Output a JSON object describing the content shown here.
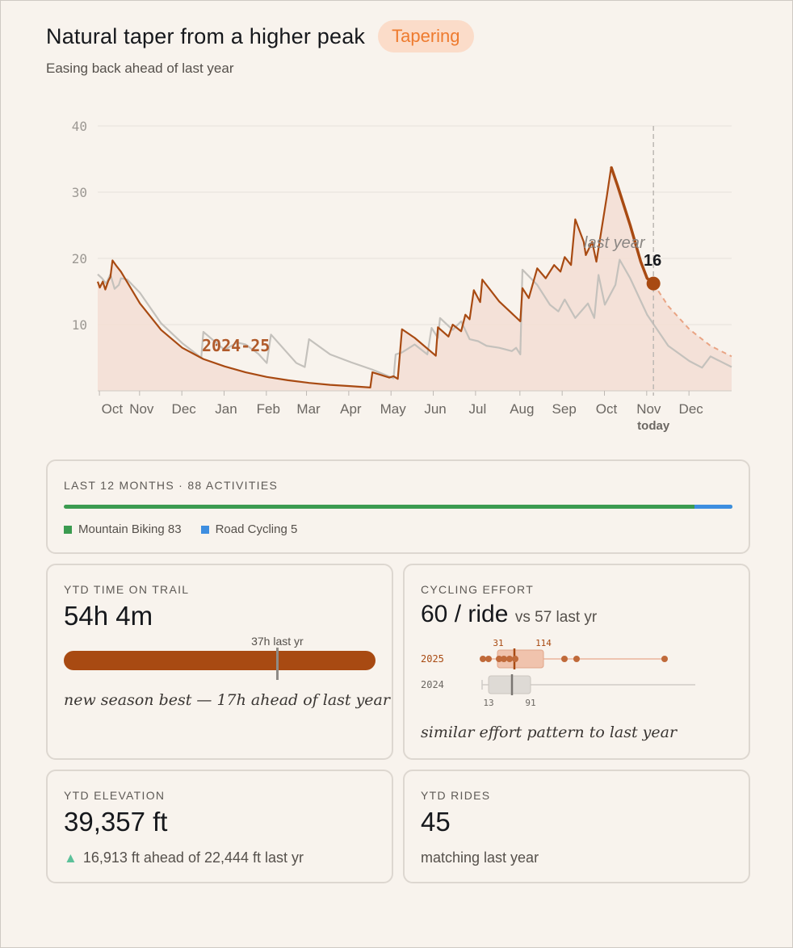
{
  "header": {
    "title": "Natural taper from a higher peak",
    "badge": "Tapering",
    "subtitle": "Easing back ahead of last year"
  },
  "chart_data": {
    "type": "line",
    "ylim": [
      0,
      40
    ],
    "yticks": [
      "10",
      "20",
      "30",
      "40"
    ],
    "x_months": [
      "Oct",
      "Nov",
      "Dec",
      "Jan",
      "Feb",
      "Mar",
      "Apr",
      "May",
      "Jun",
      "Jul",
      "Aug",
      "Sep",
      "Oct",
      "Nov",
      "Dec"
    ],
    "today_label": "today",
    "current_value": "16",
    "series": [
      {
        "name": "2024-25",
        "color": "#a84a12",
        "points": [
          [
            0,
            16.5
          ],
          [
            0.05,
            15.6
          ],
          [
            0.12,
            16.5
          ],
          [
            0.18,
            15.3
          ],
          [
            0.25,
            16.6
          ],
          [
            0.3,
            17.2
          ],
          [
            0.35,
            19.7
          ],
          [
            0.45,
            18.8
          ],
          [
            0.55,
            18.0
          ],
          [
            1,
            13.2
          ],
          [
            1.5,
            9.2
          ],
          [
            2,
            6.5
          ],
          [
            2.5,
            4.8
          ],
          [
            3,
            3.7
          ],
          [
            3.5,
            2.8
          ],
          [
            4,
            2.1
          ],
          [
            4.5,
            1.6
          ],
          [
            5,
            1.2
          ],
          [
            5.5,
            0.9
          ],
          [
            6,
            0.7
          ],
          [
            6.45,
            0.5
          ],
          [
            6.5,
            2.8
          ],
          [
            6.9,
            2.0
          ],
          [
            7.0,
            2.2
          ],
          [
            7.1,
            1.8
          ],
          [
            7.2,
            9.3
          ],
          [
            7.5,
            8.0
          ],
          [
            8.0,
            5.3
          ],
          [
            8.05,
            9.6
          ],
          [
            8.3,
            8.2
          ],
          [
            8.4,
            10.0
          ],
          [
            8.6,
            9.0
          ],
          [
            8.7,
            11.5
          ],
          [
            8.8,
            10.8
          ],
          [
            8.9,
            15.2
          ],
          [
            9.05,
            13.4
          ],
          [
            9.1,
            16.8
          ],
          [
            9.5,
            13.5
          ],
          [
            10.0,
            10.5
          ],
          [
            10.05,
            15.5
          ],
          [
            10.2,
            14.0
          ],
          [
            10.4,
            18.5
          ],
          [
            10.6,
            17.0
          ],
          [
            10.8,
            19.0
          ],
          [
            10.95,
            18.0
          ],
          [
            11.05,
            20.2
          ],
          [
            11.2,
            19.0
          ],
          [
            11.3,
            25.9
          ],
          [
            11.5,
            22.5
          ],
          [
            11.55,
            20.5
          ],
          [
            11.7,
            22.5
          ],
          [
            11.8,
            19.5
          ],
          [
            12.05,
            29.5
          ],
          [
            12.15,
            33.8
          ],
          [
            12.3,
            31.0
          ],
          [
            12.6,
            25.0
          ],
          [
            12.85,
            19.5
          ],
          [
            13.0,
            17.0
          ],
          [
            13.15,
            16.2
          ]
        ]
      },
      {
        "name": "last year",
        "color": "#c4c1bc",
        "points": [
          [
            0,
            17.6
          ],
          [
            0.1,
            17.0
          ],
          [
            0.2,
            16.2
          ],
          [
            0.3,
            17.6
          ],
          [
            0.4,
            15.4
          ],
          [
            0.5,
            16.0
          ],
          [
            0.55,
            17.0
          ],
          [
            0.7,
            16.8
          ],
          [
            1.0,
            14.8
          ],
          [
            1.5,
            10.2
          ],
          [
            2.0,
            7.2
          ],
          [
            2.45,
            5.0
          ],
          [
            2.5,
            8.9
          ],
          [
            3.0,
            6.2
          ],
          [
            3.3,
            7.3
          ],
          [
            3.5,
            7.0
          ],
          [
            3.8,
            5.6
          ],
          [
            4.0,
            4.2
          ],
          [
            4.1,
            8.5
          ],
          [
            4.7,
            4.2
          ],
          [
            4.9,
            3.6
          ],
          [
            5.0,
            7.8
          ],
          [
            5.5,
            5.5
          ],
          [
            6.0,
            4.3
          ],
          [
            6.5,
            3.2
          ],
          [
            7.0,
            1.9
          ],
          [
            7.05,
            5.5
          ],
          [
            7.2,
            5.8
          ],
          [
            7.5,
            7.0
          ],
          [
            7.8,
            5.5
          ],
          [
            7.9,
            9.5
          ],
          [
            8.05,
            8.0
          ],
          [
            8.1,
            11.0
          ],
          [
            8.4,
            9.2
          ],
          [
            8.6,
            10.5
          ],
          [
            8.8,
            7.8
          ],
          [
            9.0,
            7.5
          ],
          [
            9.2,
            6.8
          ],
          [
            9.5,
            6.5
          ],
          [
            9.8,
            6.0
          ],
          [
            9.9,
            6.5
          ],
          [
            10.0,
            5.5
          ],
          [
            10.05,
            18.3
          ],
          [
            10.4,
            16.0
          ],
          [
            10.7,
            13.0
          ],
          [
            10.9,
            12.0
          ],
          [
            11.05,
            13.8
          ],
          [
            11.3,
            11.0
          ],
          [
            11.6,
            13.2
          ],
          [
            11.75,
            11.0
          ],
          [
            11.85,
            17.5
          ],
          [
            12.0,
            13.0
          ],
          [
            12.25,
            16.0
          ],
          [
            12.35,
            19.8
          ],
          [
            12.6,
            17.0
          ],
          [
            13.0,
            11.5
          ],
          [
            13.5,
            6.8
          ],
          [
            14.0,
            4.5
          ],
          [
            14.3,
            3.5
          ],
          [
            14.5,
            5.2
          ],
          [
            15.0,
            3.6
          ]
        ]
      },
      {
        "name": "projection",
        "color": "#e9a484",
        "points": [
          [
            13.15,
            16.2
          ],
          [
            13.5,
            12.8
          ],
          [
            14.0,
            9.3
          ],
          [
            14.5,
            6.8
          ],
          [
            15.0,
            5.2
          ]
        ]
      }
    ],
    "today_x": 13.15,
    "series_labels": {
      "current": "2024-25",
      "previous": "last year"
    }
  },
  "mix": {
    "title": "LAST 12 MONTHS · 88 ACTIVITIES",
    "items": [
      {
        "label": "Mountain Biking 83",
        "color": "#3b9b50",
        "count": 83
      },
      {
        "label": "Road Cycling 5",
        "color": "#3e8ee0",
        "count": 5
      }
    ]
  },
  "time_card": {
    "eyebrow": "YTD TIME ON TRAIL",
    "value": "54h 4m",
    "marker_label": "37h last yr",
    "marker_fraction": 0.685,
    "note": "new season best — 17h ahead of last year"
  },
  "effort_card": {
    "eyebrow": "CYCLING EFFORT",
    "value": "60 / ride",
    "compare": "vs 57 last yr",
    "row_2025": "2025",
    "row_2024": "2024",
    "q1_2025": "31",
    "q3_2025": "114",
    "q1_2024": "13",
    "q3_2024": "91",
    "note": "similar effort pattern to last year"
  },
  "elevation_card": {
    "eyebrow": "YTD ELEVATION",
    "value": "39,357 ft",
    "delta": "16,913 ft ahead of 22,444 ft last yr"
  },
  "rides_card": {
    "eyebrow": "YTD RIDES",
    "value": "45",
    "note": "matching last year"
  }
}
